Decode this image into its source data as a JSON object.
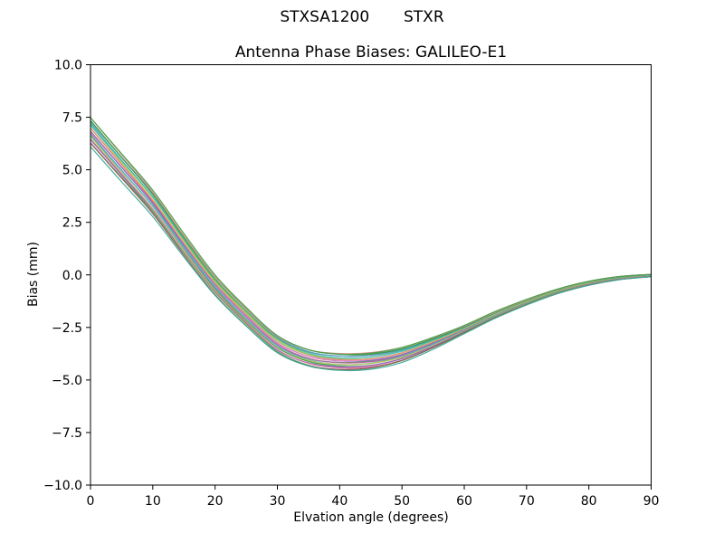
{
  "chart_data": {
    "type": "line",
    "suptitle": "STXSA1200       STXR",
    "title": "Antenna Phase Biases: GALILEO-E1",
    "xlabel": "Elvation angle (degrees)",
    "ylabel": "Bias (mm)",
    "xlim": [
      0,
      90
    ],
    "ylim": [
      -10,
      10
    ],
    "x_ticks": [
      0,
      10,
      20,
      30,
      40,
      50,
      60,
      70,
      80,
      90
    ],
    "x_tick_labels": [
      "0",
      "10",
      "20",
      "30",
      "40",
      "50",
      "60",
      "70",
      "80",
      "90"
    ],
    "y_ticks": [
      10,
      7.5,
      5,
      2.5,
      0,
      -2.5,
      -5,
      -7.5,
      -10
    ],
    "y_tick_labels": [
      "10.0",
      "7.5",
      "5.0",
      "2.5",
      "0.0",
      "−2.5",
      "−5.0",
      "−7.5",
      "−10.0"
    ],
    "grid": false,
    "legend": "none",
    "n_lines": 26,
    "x": [
      0,
      5,
      10,
      15,
      20,
      25,
      30,
      35,
      40,
      45,
      50,
      55,
      60,
      65,
      70,
      75,
      80,
      85,
      90
    ],
    "center": [
      6.8,
      5.1,
      3.4,
      1.4,
      -0.5,
      -2.0,
      -3.3,
      -3.95,
      -4.15,
      -4.1,
      -3.8,
      -3.25,
      -2.6,
      -1.9,
      -1.3,
      -0.78,
      -0.4,
      -0.15,
      -0.03
    ],
    "halfwidth": [
      0.68,
      0.63,
      0.58,
      0.52,
      0.47,
      0.45,
      0.43,
      0.42,
      0.42,
      0.4,
      0.35,
      0.27,
      0.18,
      0.15,
      0.13,
      0.11,
      0.1,
      0.08,
      0.06
    ],
    "envelope_top_at_0": 7.45,
    "envelope_bottom_at_0": 6.1,
    "envelope_min_top": -3.73,
    "envelope_min_bottom": -4.57,
    "min_elevation": 40,
    "end_value_at_90": 0.0,
    "line_fractions": [
      1.0,
      0.93,
      0.85,
      0.78,
      0.7,
      0.62,
      0.55,
      0.47,
      0.4,
      0.33,
      0.25,
      0.18,
      0.1,
      0.02,
      -0.05,
      -0.13,
      -0.2,
      -0.28,
      -0.36,
      -0.44,
      -0.52,
      -0.6,
      -0.68,
      -0.76,
      -0.86,
      -1.0
    ],
    "wiggle": 0.06,
    "palette": [
      "#44a044",
      "#e08f8f",
      "#3c9447",
      "#6f9bd6",
      "#4fae57",
      "#3ab5a2",
      "#4fc3d4",
      "#8cc455",
      "#cfc24e",
      "#de9a64",
      "#e691c0",
      "#c760a8",
      "#9861c9",
      "#df84b5",
      "#52a052",
      "#ae6a9e",
      "#5ea9d6",
      "#43b8b0",
      "#c4c455",
      "#4fa04f",
      "#e08f8f",
      "#8d64b8",
      "#d96faf",
      "#57a857",
      "#8f5a50",
      "#3aa898"
    ],
    "axis_color": "#000000",
    "background_color": "#ffffff"
  }
}
